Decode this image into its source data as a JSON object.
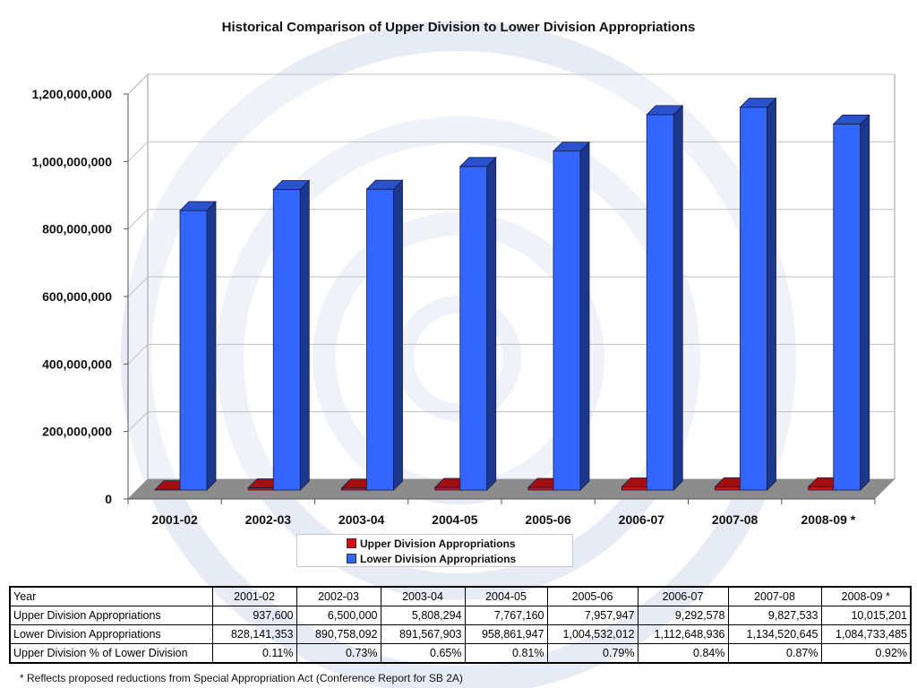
{
  "chart_data": {
    "type": "bar",
    "title": "Historical Comparison of Upper Division to Lower Division Appropriations",
    "categories": [
      "2001-02",
      "2002-03",
      "2003-04",
      "2004-05",
      "2005-06",
      "2006-07",
      "2007-08",
      "2008-09 *"
    ],
    "series": [
      {
        "name": "Upper Division Appropriations",
        "color": "#cc1111",
        "values": [
          937600,
          6500000,
          5808294,
          7767160,
          7957947,
          9292578,
          9827533,
          10015201
        ]
      },
      {
        "name": "Lower Division Appropriations",
        "color": "#3366ff",
        "values": [
          828141353,
          890758092,
          891567903,
          958861947,
          1004532012,
          1112648936,
          1134520645,
          1084733485
        ]
      }
    ],
    "ylim": [
      0,
      1200000000
    ],
    "yticks": [
      "0",
      "200,000,000",
      "400,000,000",
      "600,000,000",
      "800,000,000",
      "1,000,000,000",
      "1,200,000,000"
    ],
    "grid": true,
    "legend_position": "bottom",
    "style": "3d-clustered-column"
  },
  "table": {
    "header": [
      "Year",
      "2001-02",
      "2002-03",
      "2003-04",
      "2004-05",
      "2005-06",
      "2006-07",
      "2007-08",
      "2008-09 *"
    ],
    "rows": [
      [
        "Upper Division Appropriations",
        "937,600",
        "6,500,000",
        "5,808,294",
        "7,767,160",
        "7,957,947",
        "9,292,578",
        "9,827,533",
        "10,015,201"
      ],
      [
        "Lower Division Appropriations",
        "828,141,353",
        "890,758,092",
        "891,567,903",
        "958,861,947",
        "1,004,532,012",
        "1,112,648,936",
        "1,134,520,645",
        "1,084,733,485"
      ],
      [
        "Upper Division % of Lower Division",
        "0.11%",
        "0.73%",
        "0.65%",
        "0.81%",
        "0.79%",
        "0.84%",
        "0.87%",
        "0.92%"
      ]
    ]
  },
  "footnote": "* Reflects proposed reductions from Special Appropriation Act (Conference Report for SB 2A)"
}
